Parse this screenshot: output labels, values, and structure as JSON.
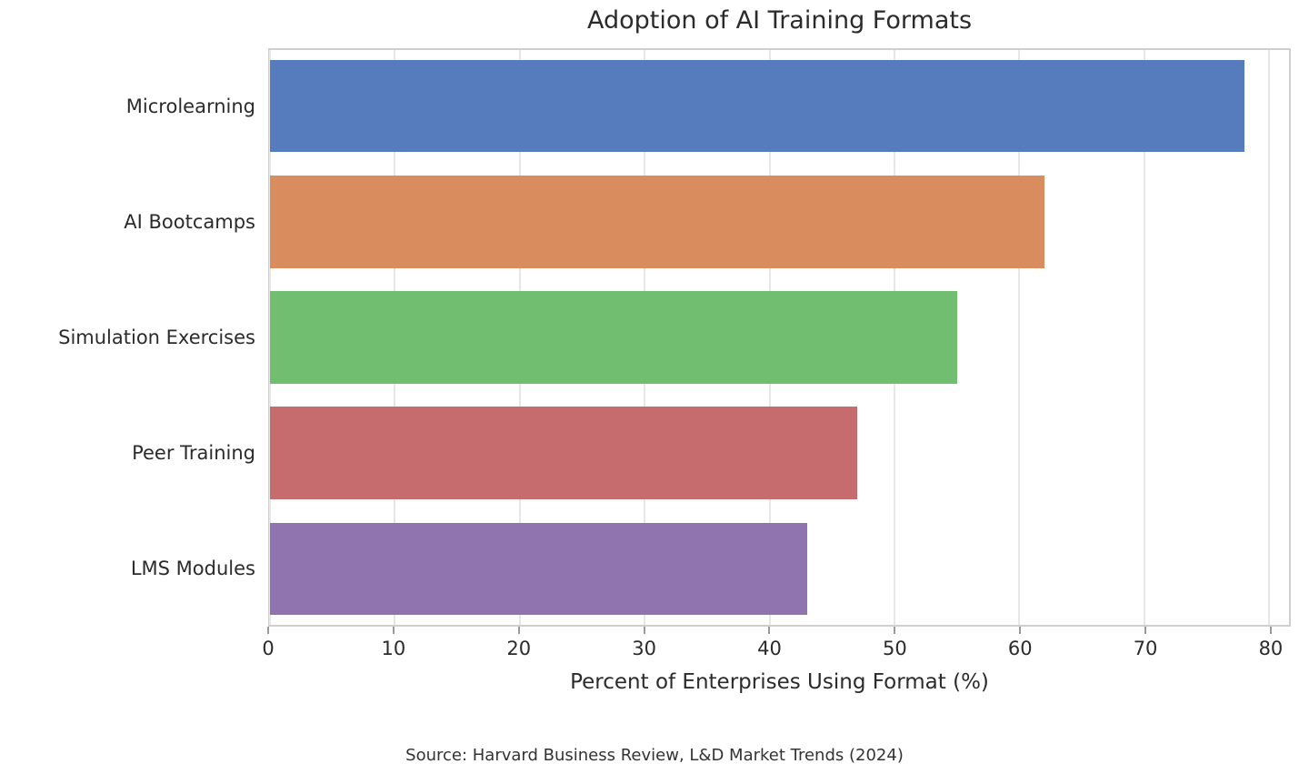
{
  "chart_data": {
    "type": "bar",
    "orientation": "horizontal",
    "title": "Adoption of AI Training Formats",
    "categories": [
      "Microlearning",
      "AI Bootcamps",
      "Simulation Exercises",
      "Peer Training",
      "LMS Modules"
    ],
    "values": [
      78,
      62,
      55,
      47,
      43
    ],
    "bar_colors": [
      "#567CBD",
      "#D98C5E",
      "#71BE70",
      "#C66C6E",
      "#8F74B0"
    ],
    "xlabel": "Percent of Enterprises Using Format (%)",
    "x_ticks": [
      0,
      10,
      20,
      30,
      40,
      50,
      60,
      70,
      80
    ],
    "xlim": [
      0,
      81.6
    ],
    "grid": "vertical",
    "grid_color": "#e7e7e7",
    "spine_color": "#cfcfcf",
    "background_color": "#ffffff",
    "source_note": "Source: Harvard Business Review, L&D Market Trends (2024)"
  }
}
